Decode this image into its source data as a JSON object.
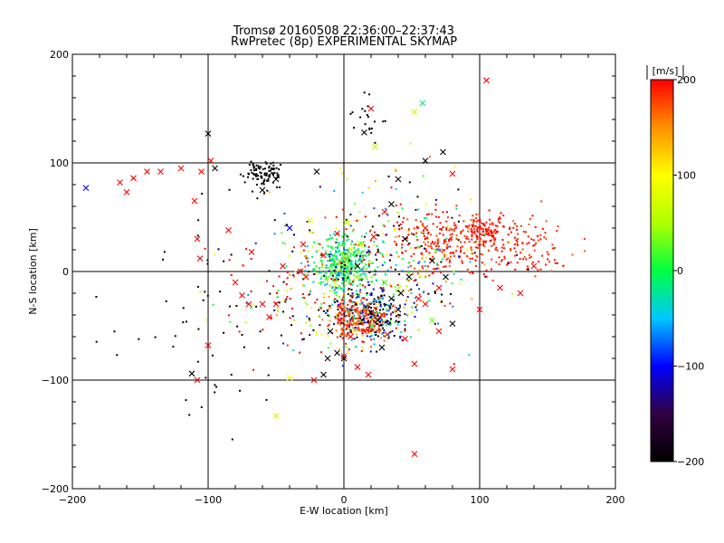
{
  "chart_data": {
    "type": "scatter",
    "title": "Tromsø 20160508 22:36:00–22:37:43",
    "subtitle": "RwPretec (8p) EXPERIMENTAL SKYMAP",
    "xlabel": "E-W location [km]",
    "ylabel": "N-S location [km]",
    "xlim": [
      -200,
      200
    ],
    "ylim": [
      -200,
      200
    ],
    "xticks": [
      -200,
      -100,
      0,
      100,
      200
    ],
    "yticks": [
      -200,
      -100,
      0,
      100,
      200
    ],
    "grid": true,
    "colorbar": {
      "label": "[m/s]",
      "min": -200,
      "max": 200,
      "ticks": [
        -200,
        -100,
        0,
        100,
        200
      ],
      "colors": [
        "#000000",
        "#300040",
        "#0000ff",
        "#00c8ff",
        "#00ff40",
        "#b0ff00",
        "#ffff00",
        "#ff9000",
        "#ff0000"
      ]
    },
    "series": [
      {
        "marker": "dot",
        "clusters": [
          {
            "cx": 0,
            "cy": 5,
            "sx": 10,
            "sy": 12,
            "n": 380,
            "v": 0,
            "vs": 35
          },
          {
            "cx": 20,
            "cy": -40,
            "sx": 14,
            "sy": 12,
            "n": 300,
            "v": -120,
            "vs": 90
          },
          {
            "cx": 10,
            "cy": -45,
            "sx": 12,
            "sy": 10,
            "n": 220,
            "v": 175,
            "vs": 25
          },
          {
            "cx": 80,
            "cy": 28,
            "sx": 28,
            "sy": 14,
            "n": 300,
            "v": 190,
            "vs": 15
          },
          {
            "cx": 105,
            "cy": 38,
            "sx": 8,
            "sy": 6,
            "n": 90,
            "v": 195,
            "vs": 8
          },
          {
            "cx": 140,
            "cy": 22,
            "sx": 14,
            "sy": 12,
            "n": 70,
            "v": 190,
            "vs": 10
          },
          {
            "cx": -60,
            "cy": 90,
            "sx": 7,
            "sy": 6,
            "n": 90,
            "v": -200,
            "vs": 0
          },
          {
            "cx": 15,
            "cy": 140,
            "sx": 8,
            "sy": 10,
            "n": 20,
            "v": -200,
            "vs": 0
          },
          {
            "cx": 30,
            "cy": 10,
            "sx": 40,
            "sy": 35,
            "n": 380,
            "v": 20,
            "vs": 170
          },
          {
            "cx": -30,
            "cy": -20,
            "sx": 30,
            "sy": 30,
            "n": 120,
            "v": 60,
            "vs": 160
          },
          {
            "cx": -80,
            "cy": -40,
            "sx": 50,
            "sy": 50,
            "n": 70,
            "v": -200,
            "vs": 0
          }
        ]
      },
      {
        "marker": "cross",
        "points": [
          [
            -190,
            77,
            -110
          ],
          [
            -165,
            82,
            200
          ],
          [
            -155,
            86,
            200
          ],
          [
            -160,
            73,
            200
          ],
          [
            -145,
            92,
            200
          ],
          [
            -135,
            92,
            200
          ],
          [
            -120,
            95,
            200
          ],
          [
            -105,
            92,
            200
          ],
          [
            -98,
            102,
            200
          ],
          [
            -110,
            65,
            200
          ],
          [
            -108,
            30,
            200
          ],
          [
            -106,
            12,
            200
          ],
          [
            -95,
            95,
            -200
          ],
          [
            -100,
            127,
            -200
          ],
          [
            -60,
            75,
            -200
          ],
          [
            -50,
            85,
            -200
          ],
          [
            -20,
            92,
            -200
          ],
          [
            -40,
            40,
            -100
          ],
          [
            -25,
            47,
            80
          ],
          [
            -68,
            18,
            200
          ],
          [
            -85,
            38,
            200
          ],
          [
            -45,
            5,
            200
          ],
          [
            -75,
            -22,
            200
          ],
          [
            -70,
            -30,
            200
          ],
          [
            -55,
            -42,
            200
          ],
          [
            -50,
            -30,
            200
          ],
          [
            -100,
            -68,
            200
          ],
          [
            -108,
            -100,
            200
          ],
          [
            -112,
            -94,
            -200
          ],
          [
            -40,
            -98,
            100
          ],
          [
            -50,
            -133,
            60
          ],
          [
            -22,
            -100,
            200
          ],
          [
            -15,
            -95,
            -200
          ],
          [
            -12,
            -80,
            -200
          ],
          [
            20,
            150,
            200
          ],
          [
            15,
            128,
            -200
          ],
          [
            23,
            115,
            60
          ],
          [
            52,
            147,
            60
          ],
          [
            58,
            155,
            -20
          ],
          [
            60,
            102,
            -200
          ],
          [
            73,
            110,
            -200
          ],
          [
            80,
            90,
            200
          ],
          [
            105,
            176,
            200
          ],
          [
            40,
            85,
            -200
          ],
          [
            35,
            62,
            -200
          ],
          [
            30,
            55,
            200
          ],
          [
            60,
            40,
            200
          ],
          [
            45,
            30,
            -200
          ],
          [
            65,
            10,
            -200
          ],
          [
            75,
            -5,
            -200
          ],
          [
            70,
            -15,
            200
          ],
          [
            55,
            -25,
            200
          ],
          [
            60,
            -30,
            200
          ],
          [
            65,
            -45,
            30
          ],
          [
            70,
            -55,
            200
          ],
          [
            80,
            -48,
            -200
          ],
          [
            35,
            -25,
            -200
          ],
          [
            40,
            -35,
            -200
          ],
          [
            25,
            -45,
            -200
          ],
          [
            15,
            -55,
            200
          ],
          [
            5,
            -60,
            200
          ],
          [
            0,
            -78,
            200
          ],
          [
            10,
            -88,
            200
          ],
          [
            18,
            -95,
            200
          ],
          [
            52,
            -85,
            200
          ],
          [
            52,
            -168,
            200
          ],
          [
            80,
            -90,
            200
          ],
          [
            -5,
            -75,
            -200
          ],
          [
            0,
            -80,
            -200
          ],
          [
            -3,
            -45,
            200
          ],
          [
            -10,
            -55,
            -200
          ],
          [
            20,
            -38,
            -200
          ],
          [
            28,
            -40,
            200
          ],
          [
            32,
            -58,
            200
          ],
          [
            45,
            -62,
            200
          ],
          [
            28,
            -70,
            -200
          ],
          [
            5,
            20,
            80
          ],
          [
            12,
            25,
            80
          ],
          [
            22,
            32,
            200
          ],
          [
            -5,
            35,
            200
          ],
          [
            2,
            45,
            60
          ],
          [
            -15,
            15,
            200
          ],
          [
            30,
            -10,
            20
          ],
          [
            -32,
            0,
            200
          ],
          [
            -28,
            -5,
            200
          ],
          [
            140,
            5,
            200
          ],
          [
            130,
            -20,
            200
          ],
          [
            115,
            -15,
            200
          ],
          [
            100,
            -35,
            200
          ],
          [
            -60,
            -30,
            200
          ],
          [
            -80,
            -10,
            200
          ],
          [
            -30,
            25,
            200
          ],
          [
            10,
            5,
            -200
          ],
          [
            42,
            -20,
            -200
          ],
          [
            48,
            -5,
            -200
          ]
        ]
      }
    ]
  }
}
